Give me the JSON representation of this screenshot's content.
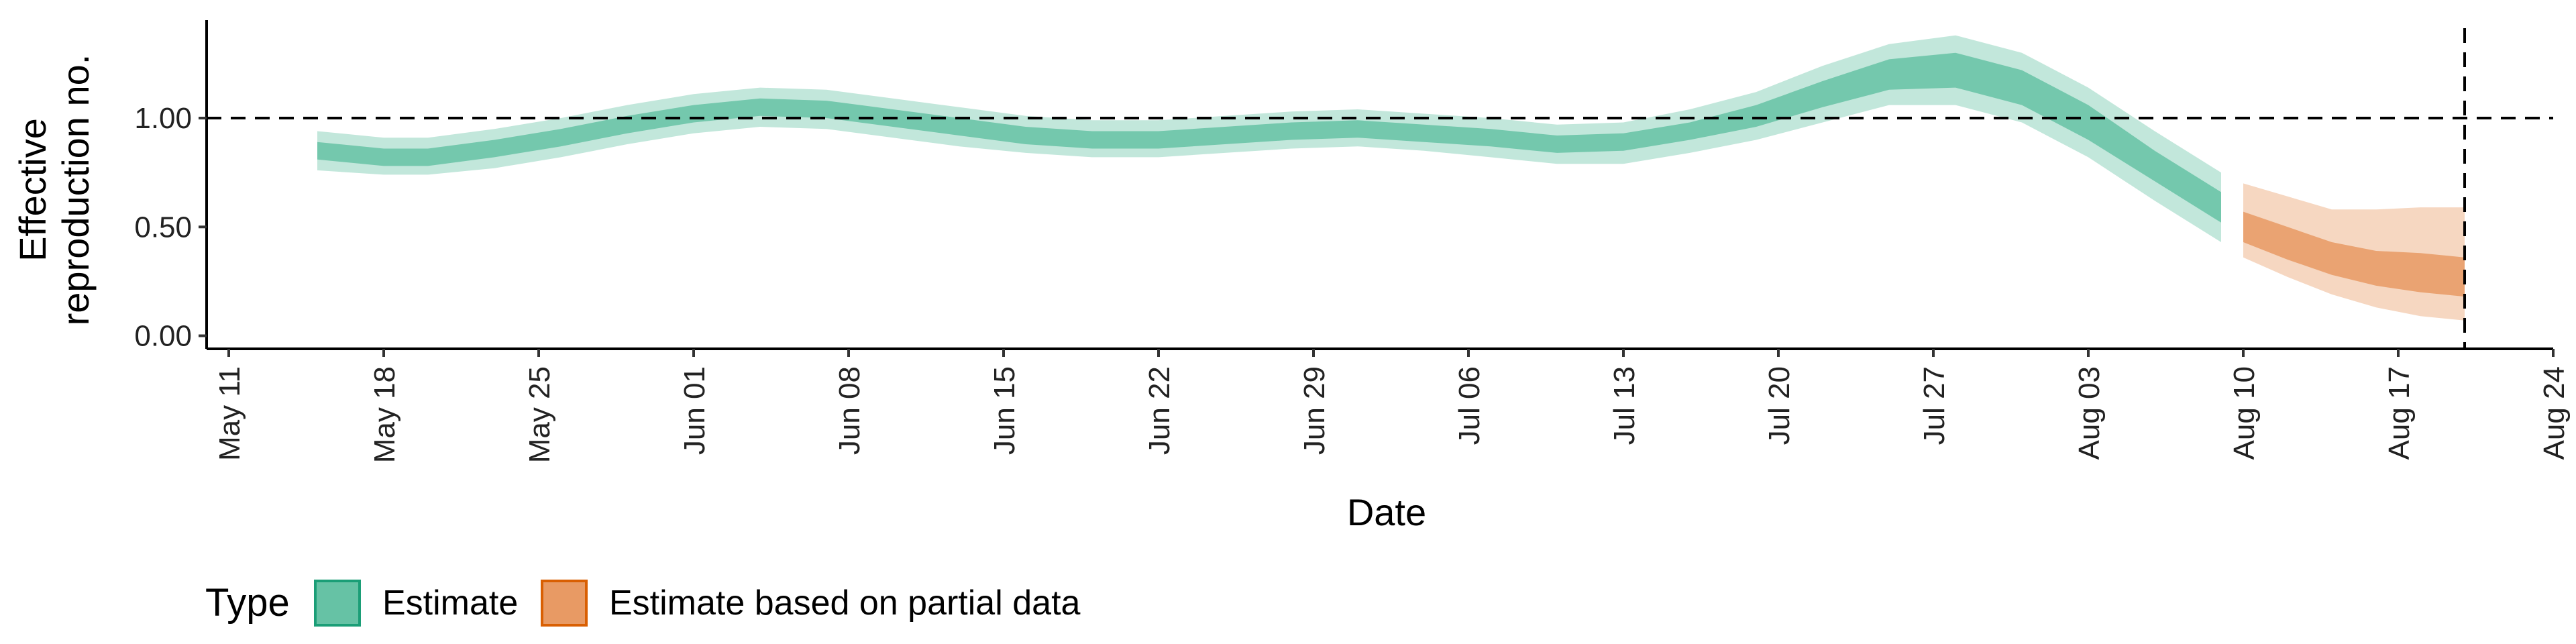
{
  "chart_data": {
    "type": "area",
    "title": "",
    "xlabel": "Date",
    "ylabel": "Effective reproduction no.",
    "ylabel_lines": [
      "Effective",
      "reproduction no."
    ],
    "x_ticks": [
      "May 11",
      "May 18",
      "May 25",
      "Jun 01",
      "Jun 08",
      "Jun 15",
      "Jun 22",
      "Jun 29",
      "Jul 06",
      "Jul 13",
      "Jul 20",
      "Jul 27",
      "Aug 03",
      "Aug 10",
      "Aug 17",
      "Aug 24"
    ],
    "xlim": [
      "2020-05-10",
      "2020-08-24"
    ],
    "y_ticks": [
      "0.00",
      "0.50",
      "1.00"
    ],
    "y_tick_values": [
      0,
      0.5,
      1.0
    ],
    "ylim": [
      -0.06,
      1.45
    ],
    "reference_lines": {
      "horizontal_y": 1.0,
      "vertical_date": "2020-08-20"
    },
    "grid": false,
    "legend": {
      "title": "Type",
      "position": "bottom-left",
      "items": [
        {
          "label": "Estimate",
          "color": "#66c2a5",
          "border": "#1b9e77"
        },
        {
          "label": "Estimate based on partial data",
          "color": "#e89a64",
          "border": "#d95f02"
        }
      ]
    },
    "series": [
      {
        "name": "Estimate",
        "fill_color": "#66c2a5",
        "x": [
          "2020-05-15",
          "2020-05-18",
          "2020-05-20",
          "2020-05-23",
          "2020-05-26",
          "2020-05-29",
          "2020-06-01",
          "2020-06-04",
          "2020-06-07",
          "2020-06-10",
          "2020-06-13",
          "2020-06-16",
          "2020-06-19",
          "2020-06-22",
          "2020-06-25",
          "2020-06-28",
          "2020-07-01",
          "2020-07-04",
          "2020-07-07",
          "2020-07-10",
          "2020-07-13",
          "2020-07-16",
          "2020-07-19",
          "2020-07-22",
          "2020-07-25",
          "2020-07-28",
          "2020-07-31",
          "2020-08-03",
          "2020-08-06",
          "2020-08-09"
        ],
        "median": [
          0.85,
          0.82,
          0.82,
          0.86,
          0.91,
          0.97,
          1.02,
          1.05,
          1.04,
          1.0,
          0.96,
          0.92,
          0.9,
          0.9,
          0.92,
          0.94,
          0.95,
          0.93,
          0.91,
          0.88,
          0.89,
          0.94,
          1.01,
          1.11,
          1.2,
          1.22,
          1.14,
          0.98,
          0.78,
          0.59
        ],
        "inner_lower": [
          0.81,
          0.78,
          0.78,
          0.82,
          0.87,
          0.93,
          0.98,
          1.01,
          1.0,
          0.96,
          0.92,
          0.88,
          0.86,
          0.86,
          0.88,
          0.9,
          0.91,
          0.89,
          0.87,
          0.84,
          0.85,
          0.9,
          0.96,
          1.05,
          1.13,
          1.14,
          1.06,
          0.9,
          0.71,
          0.52
        ],
        "inner_upper": [
          0.89,
          0.86,
          0.86,
          0.9,
          0.95,
          1.01,
          1.06,
          1.09,
          1.08,
          1.04,
          1.0,
          0.96,
          0.94,
          0.94,
          0.96,
          0.98,
          0.99,
          0.97,
          0.95,
          0.92,
          0.93,
          0.98,
          1.06,
          1.17,
          1.27,
          1.3,
          1.22,
          1.06,
          0.85,
          0.66
        ],
        "outer_lower": [
          0.76,
          0.74,
          0.74,
          0.77,
          0.82,
          0.88,
          0.93,
          0.96,
          0.95,
          0.91,
          0.87,
          0.84,
          0.82,
          0.82,
          0.84,
          0.86,
          0.87,
          0.85,
          0.82,
          0.79,
          0.79,
          0.84,
          0.9,
          0.98,
          1.06,
          1.06,
          0.98,
          0.82,
          0.62,
          0.43
        ],
        "outer_upper": [
          0.94,
          0.91,
          0.91,
          0.95,
          1.0,
          1.06,
          1.11,
          1.14,
          1.13,
          1.09,
          1.05,
          1.01,
          0.99,
          0.99,
          1.01,
          1.03,
          1.04,
          1.02,
          1.0,
          0.97,
          0.98,
          1.04,
          1.12,
          1.24,
          1.34,
          1.38,
          1.3,
          1.14,
          0.94,
          0.75
        ]
      },
      {
        "name": "Estimate based on partial data",
        "fill_color": "#e89a64",
        "x": [
          "2020-08-10",
          "2020-08-12",
          "2020-08-14",
          "2020-08-16",
          "2020-08-18",
          "2020-08-20"
        ],
        "median": [
          0.5,
          0.43,
          0.36,
          0.31,
          0.29,
          0.27
        ],
        "inner_lower": [
          0.43,
          0.35,
          0.28,
          0.23,
          0.2,
          0.18
        ],
        "inner_upper": [
          0.57,
          0.5,
          0.43,
          0.39,
          0.38,
          0.36
        ],
        "outer_lower": [
          0.36,
          0.27,
          0.19,
          0.13,
          0.09,
          0.07
        ],
        "outer_upper": [
          0.7,
          0.64,
          0.58,
          0.58,
          0.59,
          0.59
        ]
      }
    ]
  }
}
